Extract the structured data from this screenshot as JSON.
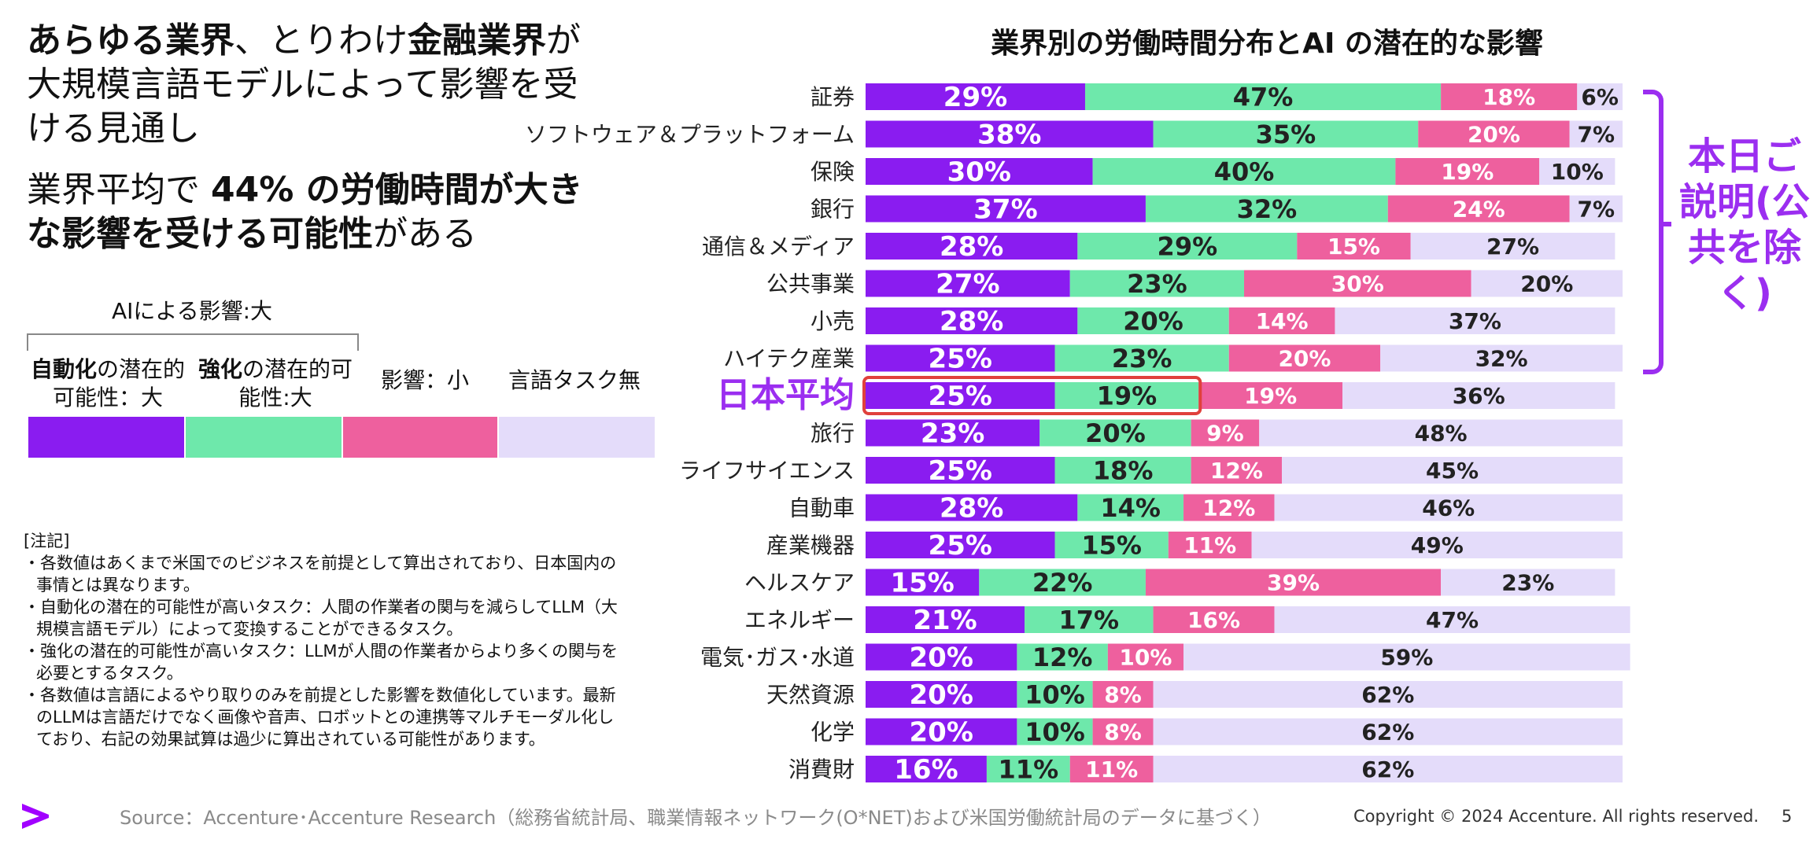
{
  "headline": {
    "part1_bold": "あらゆる業界",
    "part2": "、とりわけ",
    "part3_bold": "金融業界",
    "part4": "が大規模言語モデルによって影響を受ける見通し"
  },
  "subhead": {
    "part1": "業界平均で ",
    "part2_bold": "44% の労働時間が大きな影響を受ける可能性",
    "part3": "がある"
  },
  "legend": {
    "title": "AIによる影響:大",
    "items": [
      {
        "bold": "自動化",
        "rest": "の潜在的可能性：大",
        "color": "#8a1cf0"
      },
      {
        "bold": "強化",
        "rest": "の潜在的可能性:大",
        "color": "#6ee8ab"
      },
      {
        "bold": "",
        "rest": "影響：小",
        "color": "#ee609e"
      },
      {
        "bold": "",
        "rest": "言語タスク無",
        "color": "#e4dcfa"
      }
    ]
  },
  "notes": {
    "heading": "[注記]",
    "items": [
      "・各数値はあくまで米国でのビジネスを前提として算出されており、日本国内の事情とは異なります。",
      "・自動化の潜在的可能性が高いタスク：人間の作業者の関与を減らしてLLM（大規模言語モデル）によって変換することができるタスク。",
      "・強化の潜在的可能性が高いタスク：LLMが人間の作業者からより多くの関与を必要とするタスク。",
      "・各数値は言語によるやり取りのみを前提とした影響を数値化しています。最新のLLMは言語だけでなく画像や音声、ロボットとの連携等マルチモーダル化しており、右記の効果試算は過少に算出されている可能性があります。"
    ]
  },
  "chart_data": {
    "type": "bar",
    "orientation": "horizontal",
    "stacked": true,
    "title": "業界別の労働時間分布とAI の潜在的な影響",
    "unit": "%",
    "xlim": [
      0,
      100
    ],
    "categories": [
      "証券",
      "ソフトウェア＆プラットフォーム",
      "保険",
      "銀行",
      "通信＆メディア",
      "公共事業",
      "小売",
      "ハイテク産業",
      "日本平均",
      "旅行",
      "ライフサイエンス",
      "自動車",
      "産業機器",
      "ヘルスケア",
      "エネルギー",
      "電気･ガス･水道",
      "天然資源",
      "化学",
      "消費財"
    ],
    "highlight_category": "日本平均",
    "series": [
      {
        "name": "自動化の潜在的可能性：大",
        "color": "#8a1cf0",
        "values": [
          29,
          38,
          30,
          37,
          28,
          27,
          28,
          25,
          25,
          23,
          25,
          28,
          25,
          15,
          21,
          20,
          20,
          20,
          16
        ]
      },
      {
        "name": "強化の潜在的可能性:大",
        "color": "#6ee8ab",
        "values": [
          47,
          35,
          40,
          32,
          29,
          23,
          20,
          23,
          19,
          20,
          18,
          14,
          15,
          22,
          17,
          12,
          10,
          10,
          11
        ]
      },
      {
        "name": "影響：小",
        "color": "#ee609e",
        "values": [
          18,
          20,
          19,
          24,
          15,
          30,
          14,
          20,
          19,
          9,
          12,
          12,
          11,
          39,
          16,
          10,
          8,
          8,
          11
        ]
      },
      {
        "name": "言語タスク無",
        "color": "#e4dcfa",
        "values": [
          6,
          7,
          10,
          7,
          27,
          20,
          37,
          32,
          36,
          48,
          45,
          46,
          49,
          23,
          47,
          59,
          62,
          62,
          62
        ]
      }
    ],
    "highlight_color": "#e0403c"
  },
  "side_note": "本日ご説明(公共を除く)",
  "accent_color": "#9b2ef0",
  "footer": {
    "logo": "accenture-chevron-icon",
    "source": "Source：Accenture･Accenture Research（総務省統計局、職業情報ネットワーク(O*NET)および米国労働統計局のデータに基づく）",
    "copyright": "Copyright © 2024 Accenture. All rights reserved.",
    "page": "5"
  }
}
